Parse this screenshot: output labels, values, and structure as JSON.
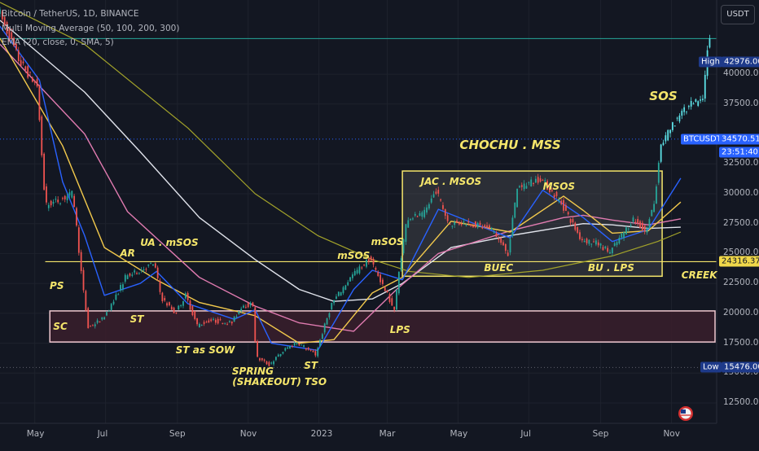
{
  "legend": {
    "symbol": "Bitcoin / TetherUS, 1D, BINANCE",
    "mma": "Multi Moving Average (50, 100, 200, 300)",
    "ema": "EMA (20, close, 0, SMA, 5)"
  },
  "currency": "USDT",
  "colors": {
    "background": "#131722",
    "up": "#26a69a",
    "down": "#ef5350",
    "annotation": "#f5e66b",
    "zone": "#3a1f2c",
    "zone_border": "#f0c8d0",
    "ema20": "#2962ff",
    "ma50": "#f2c94c",
    "ma100": "#e07bb0",
    "ma200": "#e0e3eb",
    "ma300": "#a3a32a",
    "high_line": "#26a69a"
  },
  "chart_data": {
    "type": "candlestick",
    "x_ticks": [
      "May",
      "Jul",
      "Sep",
      "Nov",
      "2023",
      "Mar",
      "May",
      "Jul",
      "Sep",
      "Nov"
    ],
    "y_ticks": [
      12500,
      15000,
      17500,
      20000,
      22500,
      25000,
      27500,
      30000,
      32500,
      37500,
      40000
    ],
    "ylim": [
      10800,
      46200
    ],
    "price_series": [
      [
        "2022-04-01",
        45500
      ],
      [
        "2022-04-20",
        41000
      ],
      [
        "2022-05-05",
        39000
      ],
      [
        "2022-05-12",
        29000
      ],
      [
        "2022-05-25",
        29500
      ],
      [
        "2022-06-05",
        30000
      ],
      [
        "2022-06-13",
        22500
      ],
      [
        "2022-06-18",
        18800
      ],
      [
        "2022-06-30",
        19500
      ],
      [
        "2022-07-10",
        21000
      ],
      [
        "2022-07-20",
        23000
      ],
      [
        "2022-07-31",
        23500
      ],
      [
        "2022-08-14",
        24200
      ],
      [
        "2022-08-20",
        21300
      ],
      [
        "2022-09-01",
        20000
      ],
      [
        "2022-09-10",
        21500
      ],
      [
        "2022-09-20",
        19000
      ],
      [
        "2022-10-01",
        19400
      ],
      [
        "2022-10-20",
        19200
      ],
      [
        "2022-10-29",
        20700
      ],
      [
        "2022-11-07",
        20700
      ],
      [
        "2022-11-10",
        16300
      ],
      [
        "2022-11-21",
        15700
      ],
      [
        "2022-12-05",
        17000
      ],
      [
        "2022-12-15",
        17600
      ],
      [
        "2022-12-31",
        16550
      ],
      [
        "2023-01-14",
        20800
      ],
      [
        "2023-01-31",
        23100
      ],
      [
        "2023-02-16",
        24600
      ],
      [
        "2023-03-09",
        20300
      ],
      [
        "2023-03-14",
        24200
      ],
      [
        "2023-03-20",
        28000
      ],
      [
        "2023-04-03",
        28200
      ],
      [
        "2023-04-14",
        30300
      ],
      [
        "2023-04-25",
        27500
      ],
      [
        "2023-05-10",
        27600
      ],
      [
        "2023-06-01",
        27000
      ],
      [
        "2023-06-15",
        25000
      ],
      [
        "2023-06-23",
        30500
      ],
      [
        "2023-07-13",
        31300
      ],
      [
        "2023-07-31",
        29200
      ],
      [
        "2023-08-17",
        26200
      ],
      [
        "2023-09-01",
        25800
      ],
      [
        "2023-09-11",
        25100
      ],
      [
        "2023-10-01",
        27900
      ],
      [
        "2023-10-12",
        26800
      ],
      [
        "2023-10-20",
        29600
      ],
      [
        "2023-10-24",
        33900
      ],
      [
        "2023-11-09",
        36500
      ],
      [
        "2023-11-20",
        37400
      ],
      [
        "2023-11-30",
        37700
      ],
      [
        "2023-12-05",
        42976
      ]
    ],
    "ema20": [
      [
        "2022-04-01",
        44000
      ],
      [
        "2022-05-05",
        39500
      ],
      [
        "2022-05-25",
        31000
      ],
      [
        "2022-06-13",
        26500
      ],
      [
        "2022-06-30",
        21500
      ],
      [
        "2022-07-31",
        22500
      ],
      [
        "2022-08-14",
        23500
      ],
      [
        "2022-09-10",
        20800
      ],
      [
        "2022-10-20",
        19500
      ],
      [
        "2022-11-07",
        20300
      ],
      [
        "2022-11-21",
        17500
      ],
      [
        "2022-12-31",
        16900
      ],
      [
        "2023-01-31",
        22000
      ],
      [
        "2023-02-16",
        23600
      ],
      [
        "2023-03-14",
        22800
      ],
      [
        "2023-04-14",
        28700
      ],
      [
        "2023-06-15",
        26300
      ],
      [
        "2023-07-13",
        30300
      ],
      [
        "2023-08-17",
        28000
      ],
      [
        "2023-09-11",
        26000
      ],
      [
        "2023-10-12",
        27000
      ],
      [
        "2023-11-09",
        31300
      ]
    ],
    "ma50": [
      [
        "2022-04-01",
        43000
      ],
      [
        "2022-05-25",
        34000
      ],
      [
        "2022-06-30",
        25500
      ],
      [
        "2022-08-14",
        22800
      ],
      [
        "2022-09-20",
        20900
      ],
      [
        "2022-11-07",
        19800
      ],
      [
        "2022-12-15",
        17500
      ],
      [
        "2023-01-14",
        17800
      ],
      [
        "2023-02-16",
        21700
      ],
      [
        "2023-03-14",
        23000
      ],
      [
        "2023-04-25",
        27700
      ],
      [
        "2023-06-15",
        26800
      ],
      [
        "2023-07-31",
        29800
      ],
      [
        "2023-08-17",
        28600
      ],
      [
        "2023-09-11",
        26700
      ],
      [
        "2023-10-12",
        26900
      ],
      [
        "2023-11-09",
        29300
      ]
    ],
    "ma100": [
      [
        "2022-04-01",
        42500
      ],
      [
        "2022-06-13",
        35000
      ],
      [
        "2022-07-20",
        28500
      ],
      [
        "2022-09-20",
        23000
      ],
      [
        "2022-11-07",
        20600
      ],
      [
        "2022-12-15",
        19200
      ],
      [
        "2023-01-31",
        18500
      ],
      [
        "2023-03-09",
        22000
      ],
      [
        "2023-04-14",
        25000
      ],
      [
        "2023-06-15",
        26900
      ],
      [
        "2023-07-31",
        28000
      ],
      [
        "2023-08-17",
        28200
      ],
      [
        "2023-09-11",
        27800
      ],
      [
        "2023-10-12",
        27400
      ],
      [
        "2023-11-09",
        27900
      ]
    ],
    "ma200": [
      [
        "2022-04-01",
        44500
      ],
      [
        "2022-06-13",
        38500
      ],
      [
        "2022-07-31",
        33500
      ],
      [
        "2022-09-20",
        28000
      ],
      [
        "2022-11-07",
        24500
      ],
      [
        "2022-12-15",
        22000
      ],
      [
        "2023-01-14",
        21000
      ],
      [
        "2023-02-16",
        21200
      ],
      [
        "2023-03-14",
        22500
      ],
      [
        "2023-04-25",
        25500
      ],
      [
        "2023-06-15",
        26500
      ],
      [
        "2023-08-17",
        27500
      ],
      [
        "2023-09-11",
        27400
      ],
      [
        "2023-10-12",
        27100
      ],
      [
        "2023-11-09",
        27200
      ]
    ],
    "ma300": [
      [
        "2022-04-01",
        46000
      ],
      [
        "2022-06-13",
        42500
      ],
      [
        "2022-09-10",
        35500
      ],
      [
        "2022-11-07",
        30000
      ],
      [
        "2022-12-31",
        26500
      ],
      [
        "2023-02-16",
        24500
      ],
      [
        "2023-03-20",
        23500
      ],
      [
        "2023-05-10",
        23000
      ],
      [
        "2023-07-13",
        23600
      ],
      [
        "2023-09-11",
        24800
      ],
      [
        "2023-10-20",
        26000
      ],
      [
        "2023-11-09",
        26800
      ]
    ],
    "levels": {
      "range_high": 24316.37,
      "zone_top": 20200,
      "zone_bottom": 17600,
      "high": 42976.0,
      "low": 15476.0
    },
    "chochu_box": {
      "from": "2023-03-14",
      "to": "2023-10-24",
      "top": 31900,
      "bottom": 23100
    },
    "price_labels": {
      "high_label": "High",
      "high_value": "42976.00",
      "current_symbol": "BTCUSDT",
      "current_price": "34570.51",
      "current_time": "23:51:40",
      "range_value": "24316.37",
      "low_label": "Low",
      "low_value": "15476.00"
    },
    "current_price_value": 34570.51,
    "annotations": [
      {
        "text": "PS",
        "date": "2022-05-20",
        "price": 22300
      },
      {
        "text": "SC",
        "date": "2022-05-23",
        "price": 18900
      },
      {
        "text": "AR",
        "date": "2022-07-20",
        "price": 25000
      },
      {
        "text": "UA . mSOS",
        "date": "2022-08-25",
        "price": 25900
      },
      {
        "text": "ST",
        "date": "2022-07-28",
        "price": 19500
      },
      {
        "text": "ST as SOW",
        "date": "2022-09-25",
        "price": 16950
      },
      {
        "text": "SPRING",
        "date": "2022-11-05",
        "price": 15150
      },
      {
        "text": "(SHAKEOUT) TSO",
        "date": "2022-11-28",
        "price": 14250
      },
      {
        "text": "ST",
        "date": "2022-12-25",
        "price": 15650
      },
      {
        "text": "mSOS",
        "date": "2023-01-31",
        "price": 24800
      },
      {
        "text": "mSOS",
        "date": "2023-03-01",
        "price": 26000
      },
      {
        "text": "LPS",
        "date": "2023-03-12",
        "price": 18600
      },
      {
        "text": "JAC . MSOS",
        "date": "2023-04-25",
        "price": 31000
      },
      {
        "text": "CHOCHU . MSS",
        "date": "2023-06-15",
        "price": 34100,
        "big": true
      },
      {
        "text": "MSOS",
        "date": "2023-07-27",
        "price": 30600
      },
      {
        "text": "BUEC",
        "date": "2023-06-05",
        "price": 23800
      },
      {
        "text": "BU . LPS",
        "date": "2023-09-10",
        "price": 23800
      },
      {
        "text": "CREEK",
        "date": "2023-11-25",
        "price": 23200
      },
      {
        "text": "SOS",
        "date": "2023-10-25",
        "price": 38200,
        "big": true
      }
    ],
    "legend_placement": "top-left",
    "grid": true
  }
}
